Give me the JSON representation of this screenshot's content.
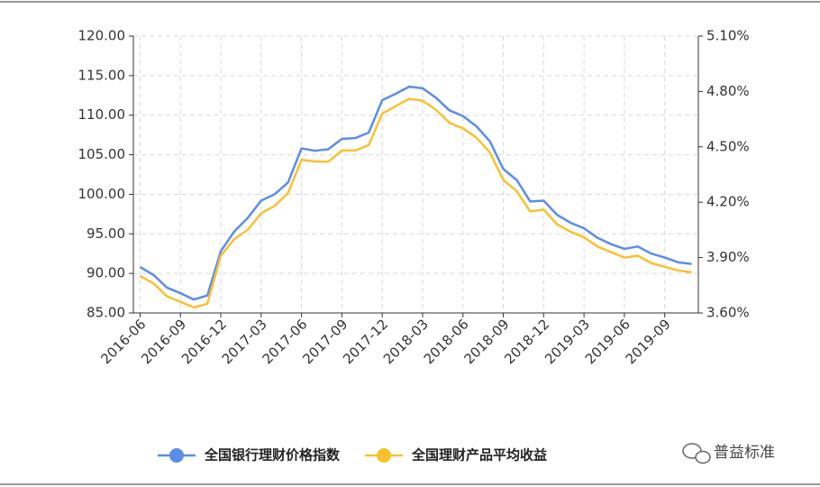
{
  "chart_data": {
    "type": "line",
    "categories": [
      "2016-06",
      null,
      null,
      "2016-09",
      null,
      null,
      "2016-12",
      null,
      null,
      "2017-03",
      null,
      null,
      "2017-06",
      null,
      null,
      "2017-09",
      null,
      null,
      "2017-12",
      null,
      null,
      "2018-03",
      null,
      null,
      "2018-06",
      null,
      null,
      "2018-09",
      null,
      null,
      "2018-12",
      null,
      null,
      "2019-03",
      null,
      null,
      "2019-06",
      null,
      null,
      "2019-09",
      null,
      null
    ],
    "series": [
      {
        "name": "全国银行理财价格指数",
        "color": "#5b8de8",
        "axis": "y",
        "values": [
          90.8,
          89.8,
          88.2,
          87.5,
          86.7,
          87.2,
          92.8,
          95.3,
          97.0,
          99.2,
          100.0,
          101.5,
          105.8,
          105.5,
          105.7,
          107.0,
          107.1,
          107.8,
          111.9,
          112.7,
          113.6,
          113.4,
          112.2,
          110.6,
          109.9,
          108.6,
          106.7,
          103.2,
          101.8,
          99.1,
          99.2,
          97.4,
          96.4,
          95.7,
          94.5,
          93.7,
          93.1,
          93.4,
          92.5,
          92.0,
          91.4,
          91.2
        ]
      },
      {
        "name": "全国理财产品平均收益",
        "color": "#f9c12e",
        "axis": "y2",
        "values": [
          3.8,
          3.76,
          3.69,
          3.66,
          3.63,
          3.65,
          3.91,
          4.0,
          4.05,
          4.14,
          4.18,
          4.25,
          4.43,
          4.42,
          4.42,
          4.48,
          4.48,
          4.51,
          4.68,
          4.72,
          4.76,
          4.75,
          4.7,
          4.63,
          4.6,
          4.55,
          4.47,
          4.32,
          4.26,
          4.15,
          4.16,
          4.08,
          4.04,
          4.01,
          3.96,
          3.93,
          3.9,
          3.91,
          3.87,
          3.85,
          3.83,
          3.82
        ]
      }
    ],
    "ylim": [
      85,
      120
    ],
    "yticks": [
      {
        "value": 85,
        "label": "85.00"
      },
      {
        "value": 90,
        "label": "90.00"
      },
      {
        "value": 95,
        "label": "95.00"
      },
      {
        "value": 100,
        "label": "100.00"
      },
      {
        "value": 105,
        "label": "105.00"
      },
      {
        "value": 110,
        "label": "110.00"
      },
      {
        "value": 115,
        "label": "115.00"
      },
      {
        "value": 120,
        "label": "120.00"
      }
    ],
    "y2lim": [
      3.6,
      5.1
    ],
    "y2ticks": [
      {
        "value": 3.6,
        "label": "3.60%"
      },
      {
        "value": 3.9,
        "label": "3.90%"
      },
      {
        "value": 4.2,
        "label": "4.20%"
      },
      {
        "value": 4.5,
        "label": "4.50%"
      },
      {
        "value": 4.8,
        "label": "4.80%"
      },
      {
        "value": 5.1,
        "label": "5.10%"
      }
    ],
    "grid": true,
    "legend": "bottom",
    "watermark": "普益标准"
  }
}
